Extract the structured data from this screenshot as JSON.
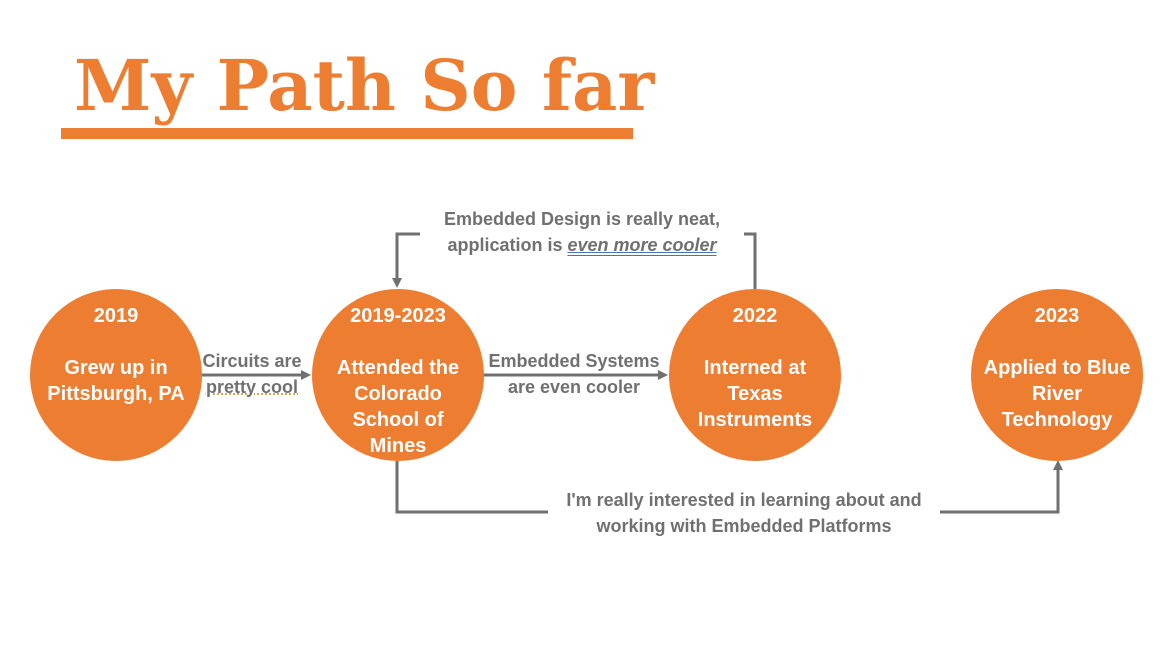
{
  "slide": {
    "title": "My Path So far"
  },
  "colors": {
    "accent": "#ED7D31",
    "connector": "#707070",
    "node_text": "#FFFFFF"
  },
  "nodes": [
    {
      "year": "2019",
      "text": "Grew up in Pittsburgh, PA"
    },
    {
      "year": "2019-2023",
      "text": "Attended the Colorado School of Mines"
    },
    {
      "year": "2022",
      "text": "Interned at Texas Instruments"
    },
    {
      "year": "2023",
      "text": "Applied to Blue River Technology"
    }
  ],
  "connectors": {
    "circuits": {
      "line1": "Circuits are",
      "line2": "pretty cool"
    },
    "embedded_systems": {
      "line1": "Embedded Systems",
      "line2": "are even cooler"
    },
    "embedded_design": {
      "line1": "Embedded Design is really neat,",
      "line2_prefix": "application is ",
      "line2_emphasis": "even more cooler"
    },
    "platforms": {
      "line1": "I'm really interested in learning about and",
      "line2": "working with Embedded Platforms"
    }
  }
}
